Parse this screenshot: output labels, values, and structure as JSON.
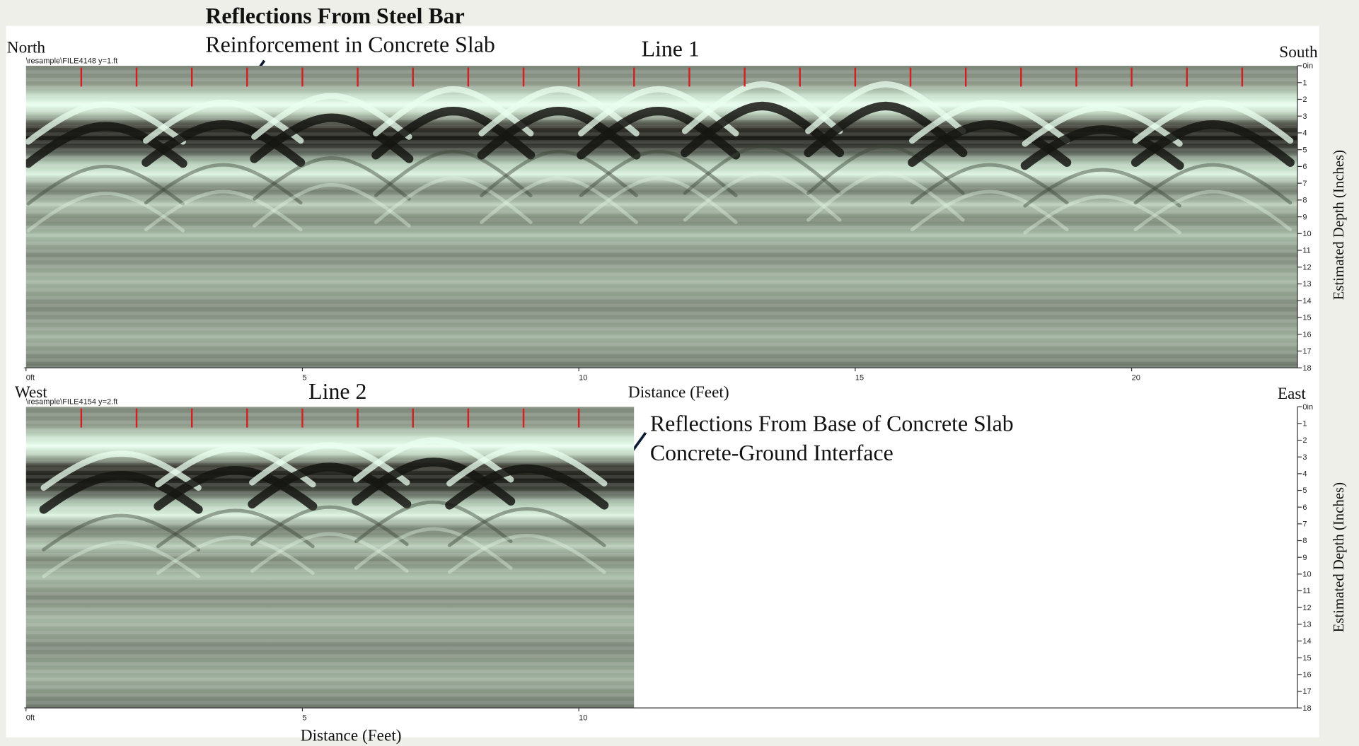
{
  "chart_data": [
    {
      "type": "radargram",
      "title": "Line 1",
      "left_label": "North",
      "right_label": "South",
      "file_label": "\\resample\\FILE4148  y=1.ft",
      "x_label": "Distance (Feet)",
      "y_label": "Estimated Depth (Inches)",
      "annotation": [
        "Reflections From Steel Bar",
        "Reinforcement in Concrete Slab"
      ],
      "xlim": [
        0,
        23
      ],
      "xticks": [
        {
          "value": 0,
          "label": "0ft"
        },
        5,
        10,
        15,
        20
      ],
      "ylim": [
        0,
        18
      ],
      "y_inverted": true,
      "yticks": [
        {
          "value": 0,
          "label": "0in"
        },
        1,
        2,
        3,
        4,
        5,
        6,
        7,
        8,
        9,
        10,
        11,
        12,
        13,
        14,
        15,
        16,
        17,
        18
      ],
      "profile_xlim": [
        0,
        23
      ],
      "reflections": {
        "x": [
          1.44,
          3.57,
          5.53,
          7.73,
          9.64,
          11.44,
          13.32,
          15.55,
          17.43,
          19.47,
          21.47
        ],
        "depth": [
          3.4,
          3.3,
          2.9,
          2.5,
          2.5,
          2.5,
          2.2,
          2.2,
          3.3,
          3.6,
          3.3
        ]
      }
    },
    {
      "type": "radargram",
      "title": "Line 2",
      "left_label": "West",
      "right_label": "East",
      "file_label": "\\resample\\FILE4154  y=2.ft",
      "x_label": "Distance (Feet)",
      "y_label": "Estimated Depth (Inches)",
      "annotation": [
        "Reflections From Base of Concrete Slab",
        "Concrete-Ground Interface"
      ],
      "xlim": [
        0,
        23
      ],
      "xticks": [
        {
          "value": 0,
          "label": "0ft"
        },
        5,
        10
      ],
      "ylim": [
        0,
        18
      ],
      "y_inverted": true,
      "yticks": [
        {
          "value": 0,
          "label": "0in"
        },
        1,
        2,
        3,
        4,
        5,
        6,
        7,
        8,
        9,
        10,
        11,
        12,
        13,
        14,
        15,
        16,
        17,
        18
      ],
      "profile_xlim": [
        0,
        11
      ],
      "reflections": {
        "x": [
          1.72,
          3.79,
          5.49,
          7.37,
          9.06
        ],
        "depth": [
          3.9,
          3.6,
          3.4,
          3.1,
          3.5
        ]
      }
    }
  ]
}
